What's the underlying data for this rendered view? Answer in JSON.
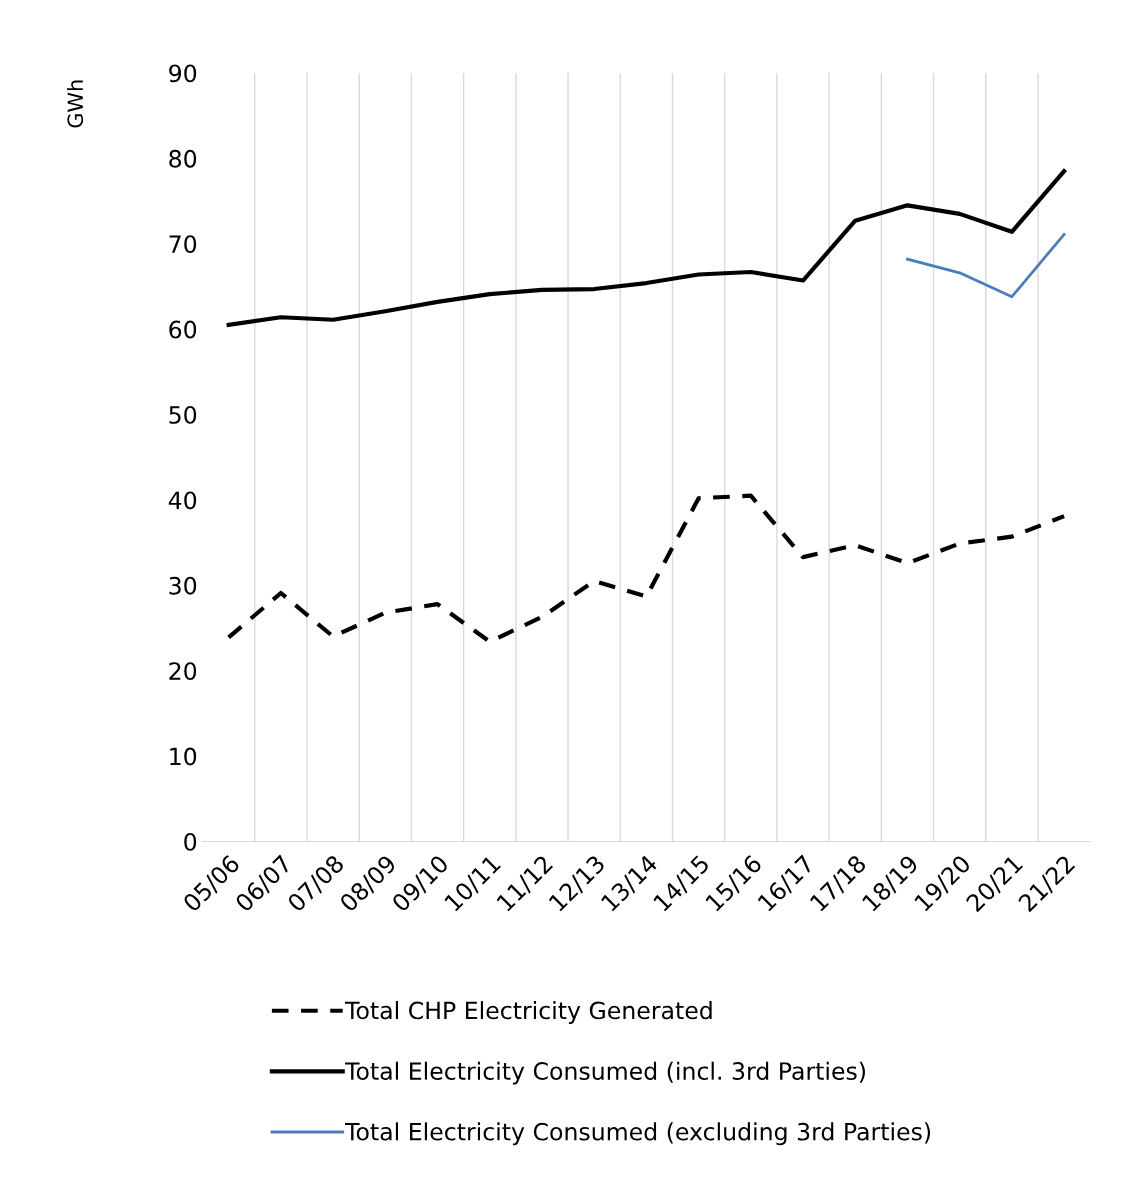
{
  "chart_data": {
    "type": "line",
    "ylabel": "GWh",
    "categories": [
      "05/06",
      "06/07",
      "07/08",
      "08/09",
      "09/10",
      "10/11",
      "11/12",
      "12/13",
      "13/14",
      "14/15",
      "15/16",
      "16/17",
      "17/18",
      "18/19",
      "19/20",
      "20/21",
      "21/22"
    ],
    "series": [
      {
        "name": "Total CHP Electricity Generated",
        "color": "#000000",
        "line_style": "dashed",
        "values": [
          23.9,
          29.1,
          24.0,
          26.8,
          27.8,
          23.4,
          26.3,
          30.5,
          28.7,
          40.2,
          40.5,
          33.3,
          34.7,
          32.6,
          34.9,
          35.7,
          38.1
        ]
      },
      {
        "name": "Total Electricity Consumed (incl. 3rd Parties)",
        "color": "#000000",
        "line_style": "solid",
        "values": [
          60.5,
          61.4,
          61.1,
          62.1,
          63.2,
          64.1,
          64.6,
          64.7,
          65.4,
          66.4,
          66.7,
          65.7,
          72.7,
          74.5,
          73.5,
          71.4,
          78.5
        ]
      },
      {
        "name": "Total Electricity Consumed (excluding 3rd Parties)",
        "color": "#4a7ebb",
        "line_style": "solid",
        "values": [
          null,
          null,
          null,
          null,
          null,
          null,
          null,
          null,
          null,
          null,
          null,
          null,
          null,
          68.2,
          66.6,
          63.8,
          71.1
        ]
      }
    ],
    "ylim": [
      0,
      90
    ],
    "yticks": [
      0,
      10,
      20,
      30,
      40,
      50,
      60,
      70,
      80,
      90
    ],
    "grid": "x",
    "legend": "bottom",
    "marker": "none"
  }
}
